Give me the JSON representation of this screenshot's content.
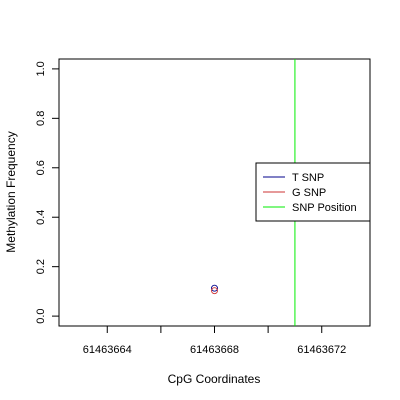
{
  "chart_data": {
    "type": "scatter",
    "title": "",
    "xlabel": "CpG Coordinates",
    "ylabel": "Methylation Frequency",
    "xlim": [
      61463662.2,
      61463673.8
    ],
    "ylim": [
      -0.04,
      1.04
    ],
    "x_ticks": [
      61463664,
      61463666,
      61463668,
      61463670,
      61463672
    ],
    "x_tick_labels": [
      "61463664",
      "",
      "61463668",
      "",
      "61463672"
    ],
    "y_ticks": [
      0.0,
      0.2,
      0.4,
      0.6,
      0.8,
      1.0
    ],
    "y_tick_labels": [
      "0.0",
      "0.2",
      "0.4",
      "0.6",
      "0.8",
      "1.0"
    ],
    "grid": false,
    "legend_position": "right",
    "series": [
      {
        "name": "T SNP",
        "color": "#00008B",
        "marker": "open-circle",
        "x": [
          61463668
        ],
        "y": [
          0.113
        ]
      },
      {
        "name": "G SNP",
        "color": "#CD3333",
        "marker": "open-circle",
        "x": [
          61463668
        ],
        "y": [
          0.103
        ]
      }
    ],
    "vlines": [
      {
        "name": "SNP Position",
        "color": "#00EE00",
        "x": 61463671
      }
    ]
  }
}
